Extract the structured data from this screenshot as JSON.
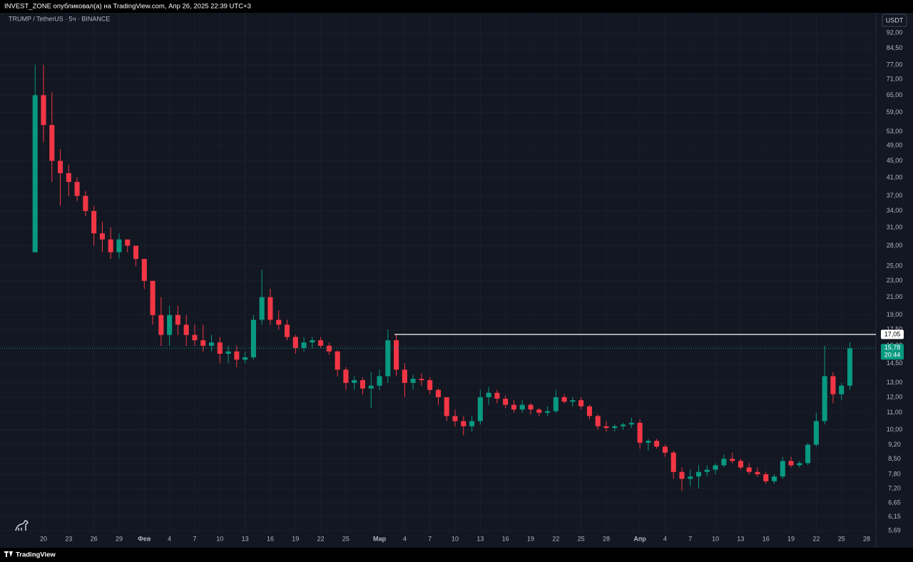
{
  "chart_data": {
    "type": "candlestick",
    "publisher": "INVEST_ZONE опубликовал(а) на TradingView.com, Апр 26, 2025 22:39 UTC+3",
    "title": "TRUMP / TetherUS · 5ч · BINANCE",
    "currency": "USDT",
    "footer": "TradingView",
    "log_scale": true,
    "grid": true,
    "up_color": "#089981",
    "down_color": "#f23645",
    "xlim": [
      15.5,
      119.1
    ],
    "ylim": [
      5.6,
      103
    ],
    "xticks": [
      {
        "value": 20,
        "label": "20"
      },
      {
        "value": 23,
        "label": "23"
      },
      {
        "value": 26,
        "label": "26"
      },
      {
        "value": 29,
        "label": "29"
      },
      {
        "value": 32,
        "label": "Фев"
      },
      {
        "value": 35,
        "label": "4"
      },
      {
        "value": 38,
        "label": "7"
      },
      {
        "value": 41,
        "label": "10"
      },
      {
        "value": 44,
        "label": "13"
      },
      {
        "value": 47,
        "label": "16"
      },
      {
        "value": 50,
        "label": "19"
      },
      {
        "value": 53,
        "label": "22"
      },
      {
        "value": 56,
        "label": "25"
      },
      {
        "value": 60,
        "label": "Мар"
      },
      {
        "value": 63,
        "label": "4"
      },
      {
        "value": 66,
        "label": "7"
      },
      {
        "value": 69,
        "label": "10"
      },
      {
        "value": 72,
        "label": "13"
      },
      {
        "value": 75,
        "label": "16"
      },
      {
        "value": 78,
        "label": "19"
      },
      {
        "value": 81,
        "label": "22"
      },
      {
        "value": 84,
        "label": "25"
      },
      {
        "value": 87,
        "label": "28"
      },
      {
        "value": 91,
        "label": "Апр"
      },
      {
        "value": 94,
        "label": "4"
      },
      {
        "value": 97,
        "label": "7"
      },
      {
        "value": 100,
        "label": "10"
      },
      {
        "value": 103,
        "label": "13"
      },
      {
        "value": 106,
        "label": "16"
      },
      {
        "value": 109,
        "label": "19"
      },
      {
        "value": 112,
        "label": "22"
      },
      {
        "value": 115,
        "label": "25"
      },
      {
        "value": 118,
        "label": "28"
      }
    ],
    "yticks": [
      {
        "value": 92,
        "label": "92,00"
      },
      {
        "value": 84.5,
        "label": "84,50"
      },
      {
        "value": 77,
        "label": "77,00"
      },
      {
        "value": 71,
        "label": "71,00"
      },
      {
        "value": 65,
        "label": "65,00"
      },
      {
        "value": 59,
        "label": "59,00"
      },
      {
        "value": 53,
        "label": "53,00"
      },
      {
        "value": 49,
        "label": "49,00"
      },
      {
        "value": 45,
        "label": "45,00"
      },
      {
        "value": 41,
        "label": "41,00"
      },
      {
        "value": 37,
        "label": "37,00"
      },
      {
        "value": 34,
        "label": "34,00"
      },
      {
        "value": 31,
        "label": "31,00"
      },
      {
        "value": 28,
        "label": "28,00"
      },
      {
        "value": 25,
        "label": "25,00"
      },
      {
        "value": 23,
        "label": "23,00"
      },
      {
        "value": 21,
        "label": "21,00"
      },
      {
        "value": 19,
        "label": "19,00"
      },
      {
        "value": 17.5,
        "label": "17,50"
      },
      {
        "value": 16,
        "label": "16,00"
      },
      {
        "value": 14.5,
        "label": "14,50"
      },
      {
        "value": 13,
        "label": "13,00"
      },
      {
        "value": 12,
        "label": "12,00"
      },
      {
        "value": 11,
        "label": "11,00"
      },
      {
        "value": 10,
        "label": "10,00"
      },
      {
        "value": 9.2,
        "label": "9,20"
      },
      {
        "value": 8.5,
        "label": "8,50"
      },
      {
        "value": 7.8,
        "label": "7,80"
      },
      {
        "value": 7.2,
        "label": "7,20"
      },
      {
        "value": 6.65,
        "label": "6,65"
      },
      {
        "value": 6.15,
        "label": "6,15"
      },
      {
        "value": 5.69,
        "label": "5,69"
      }
    ],
    "x": [
      19,
      20,
      21,
      22,
      23,
      24,
      25,
      26,
      27,
      28,
      29,
      30,
      31,
      32,
      33,
      34,
      35,
      36,
      37,
      38,
      39,
      40,
      41,
      42,
      43,
      44,
      45,
      46,
      47,
      48,
      49,
      50,
      51,
      52,
      53,
      54,
      55,
      56,
      57,
      58,
      59,
      60,
      61,
      62,
      63,
      64,
      65,
      66,
      67,
      68,
      69,
      70,
      71,
      72,
      73,
      74,
      75,
      76,
      77,
      78,
      79,
      80,
      81,
      82,
      83,
      84,
      85,
      86,
      87,
      88,
      89,
      90,
      91,
      92,
      93,
      94,
      95,
      96,
      97,
      98,
      99,
      100,
      101,
      102,
      103,
      104,
      105,
      106,
      107,
      108,
      109,
      110,
      111,
      112,
      113,
      114,
      115,
      116
    ],
    "open": [
      27,
      65,
      55,
      45,
      42,
      40,
      37,
      34,
      30,
      29,
      27,
      29,
      28,
      26,
      23,
      19,
      17,
      19,
      18,
      17,
      16.5,
      16,
      16.3,
      15.3,
      15.5,
      14.8,
      15,
      18.5,
      21,
      18.5,
      18,
      16.8,
      15.8,
      16.3,
      16.5,
      16,
      15.5,
      14,
      13,
      13.2,
      12.6,
      12.8,
      13.5,
      16.5,
      14,
      13,
      13.3,
      13.2,
      12.5,
      12,
      10.8,
      10.5,
      10.2,
      10.5,
      12,
      12.3,
      11.9,
      11.5,
      11.2,
      11.5,
      11.2,
      11,
      11.1,
      12,
      11.7,
      11.8,
      11.4,
      10.8,
      10.2,
      10.1,
      10.2,
      10.3,
      10.4,
      9.3,
      9.4,
      9.1,
      8.8,
      7.9,
      7.6,
      7.7,
      7.9,
      8,
      8.2,
      8.5,
      8.4,
      8.1,
      7.9,
      7.8,
      7.5,
      7.7,
      8.4,
      8.2,
      8.3,
      9.2,
      10.5,
      13.5,
      12.2,
      12.8
    ],
    "high": [
      77,
      77,
      66,
      48,
      44,
      41,
      38,
      35,
      32,
      31,
      30,
      29,
      28,
      26,
      23,
      21,
      20,
      20,
      19,
      18,
      18,
      17,
      16.8,
      16,
      16,
      15.5,
      19,
      24.5,
      22,
      19.5,
      18.5,
      17,
      16.8,
      16.8,
      16.8,
      16.3,
      15.6,
      14.2,
      13.5,
      13.4,
      13.8,
      14,
      17.5,
      17,
      14.5,
      13.6,
      13.7,
      13.4,
      12.6,
      12,
      11.2,
      10.8,
      10.8,
      12.5,
      12.7,
      12.5,
      12.1,
      11.8,
      11.8,
      11.6,
      11.3,
      11.4,
      12.5,
      12.2,
      12,
      12,
      11.5,
      10.9,
      10.5,
      10.3,
      10.4,
      10.7,
      10.6,
      9.5,
      9.5,
      9.2,
      8.9,
      8.1,
      8,
      8.2,
      8.2,
      8.3,
      8.7,
      8.8,
      8.5,
      8.3,
      8.1,
      7.9,
      7.8,
      8.6,
      8.6,
      8.4,
      9.3,
      11,
      16,
      13.8,
      13,
      16.3
    ],
    "low": [
      27,
      50,
      40,
      35,
      37,
      36,
      33,
      28,
      27,
      26,
      26,
      27,
      25,
      22,
      18,
      16,
      16,
      17,
      16,
      16,
      15.5,
      15.5,
      14.5,
      14.5,
      14.2,
      14.5,
      14.8,
      18,
      18,
      17.5,
      16.5,
      15.3,
      15.5,
      15.8,
      15.8,
      15.2,
      13.5,
      12.5,
      12.5,
      12.2,
      11.3,
      12.5,
      13,
      13.5,
      12,
      12.5,
      12.8,
      12.2,
      11.5,
      10.5,
      10.2,
      9.7,
      9.9,
      10.3,
      11.5,
      11.6,
      11.3,
      11,
      11,
      10.9,
      10.8,
      10.8,
      11,
      11.6,
      11.4,
      11.2,
      10.6,
      10,
      9.9,
      9.9,
      10,
      10.1,
      9,
      8.9,
      9,
      8.6,
      7.6,
      7.1,
      7.3,
      7.2,
      7.7,
      7.8,
      8.1,
      8.3,
      8,
      7.8,
      7.7,
      7.4,
      7.4,
      7.6,
      8.1,
      8.1,
      8.2,
      9.1,
      10.3,
      11.6,
      11.8,
      12.5
    ],
    "close": [
      65,
      55,
      45,
      42,
      40,
      37,
      34,
      30,
      29,
      27,
      29,
      28,
      26,
      23,
      19,
      17,
      19,
      18,
      17,
      16.5,
      16,
      16.3,
      15.3,
      15.5,
      14.8,
      15,
      18.5,
      21,
      18.5,
      18,
      16.8,
      15.8,
      16.3,
      16.5,
      16,
      15.5,
      14,
      13,
      13.2,
      12.6,
      12.8,
      13.5,
      16.5,
      14,
      13,
      13.3,
      13.2,
      12.5,
      12,
      10.8,
      10.5,
      10.2,
      10.5,
      12,
      12.3,
      11.9,
      11.5,
      11.2,
      11.5,
      11.2,
      11,
      11.1,
      12,
      11.7,
      11.8,
      11.4,
      10.8,
      10.2,
      10.1,
      10.2,
      10.3,
      10.4,
      9.3,
      9.4,
      9.1,
      8.8,
      7.9,
      7.6,
      7.7,
      7.9,
      8,
      8.2,
      8.5,
      8.4,
      8.1,
      7.9,
      7.8,
      7.5,
      7.7,
      8.4,
      8.2,
      8.3,
      9.2,
      10.5,
      13.5,
      12.2,
      12.8,
      15.78
    ],
    "level_line": {
      "value": 17.05,
      "label": "17,05",
      "x": 61.8,
      "color": "#ffffff"
    },
    "last_price": {
      "value": 15.78,
      "label": "15,78",
      "time": "20:44"
    }
  }
}
